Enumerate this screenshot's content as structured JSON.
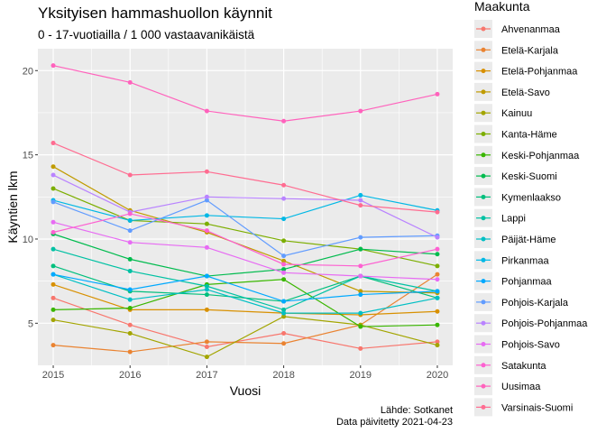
{
  "chart_data": {
    "type": "line",
    "title": "Yksityisen hammashuollon käynnit",
    "subtitle": "0 - 17-vuotiailla / 1 000 vastaavanikäistä",
    "xlabel": "Vuosi",
    "ylabel": "Käyntien lkm",
    "x": [
      2015,
      2016,
      2017,
      2018,
      2019,
      2020
    ],
    "xlim": [
      2014.8,
      2020.2
    ],
    "ylim": [
      2.5,
      21.3
    ],
    "y_ticks": [
      5,
      10,
      15,
      20
    ],
    "grid": true,
    "legend_title": "Maakunta",
    "legend_position": "right",
    "caption": [
      "Lähde: Sotkanet",
      "Data päivitetty 2021-04-23"
    ],
    "series": [
      {
        "name": "Ahvenanmaa",
        "color": "#F8766D",
        "values": [
          6.5,
          4.9,
          3.6,
          4.4,
          3.5,
          3.9
        ]
      },
      {
        "name": "Etelä-Karjala",
        "color": "#EA8331",
        "values": [
          3.7,
          3.3,
          3.9,
          3.8,
          4.9,
          7.9
        ]
      },
      {
        "name": "Etelä-Pohjanmaa",
        "color": "#D89000",
        "values": [
          7.3,
          5.8,
          5.8,
          5.6,
          5.5,
          5.7
        ]
      },
      {
        "name": "Etelä-Savo",
        "color": "#C09B00",
        "values": [
          14.3,
          11.7,
          10.4,
          8.7,
          6.9,
          6.8
        ]
      },
      {
        "name": "Kainuu",
        "color": "#A3A500",
        "values": [
          5.2,
          4.4,
          3.0,
          5.4,
          4.9,
          3.7
        ]
      },
      {
        "name": "Kanta-Häme",
        "color": "#7CAE00",
        "values": [
          13.0,
          11.1,
          10.9,
          9.9,
          9.4,
          8.4
        ]
      },
      {
        "name": "Keski-Pohjanmaa",
        "color": "#39B600",
        "values": [
          5.8,
          5.9,
          7.3,
          7.6,
          4.8,
          4.9
        ]
      },
      {
        "name": "Keski-Suomi",
        "color": "#00BB4E",
        "values": [
          10.3,
          8.8,
          7.8,
          8.2,
          9.4,
          9.1
        ]
      },
      {
        "name": "Kymenlaakso",
        "color": "#00BF7D",
        "values": [
          8.4,
          6.9,
          6.7,
          6.3,
          7.8,
          6.5
        ]
      },
      {
        "name": "Lappi",
        "color": "#00C1A3",
        "values": [
          9.4,
          8.1,
          7.2,
          5.8,
          7.8,
          6.9
        ]
      },
      {
        "name": "Päijät-Häme",
        "color": "#00BFC4",
        "values": [
          7.9,
          6.4,
          7.0,
          5.6,
          5.6,
          6.5
        ]
      },
      {
        "name": "Pirkanmaa",
        "color": "#00B8E5",
        "values": [
          12.3,
          11.1,
          11.4,
          11.2,
          12.6,
          11.7
        ]
      },
      {
        "name": "Pohjanmaa",
        "color": "#00A9FF",
        "values": [
          7.9,
          7.0,
          7.8,
          6.3,
          6.7,
          6.9
        ]
      },
      {
        "name": "Pohjois-Karjala",
        "color": "#619CFF",
        "values": [
          12.2,
          10.5,
          12.3,
          9.0,
          10.1,
          10.2
        ]
      },
      {
        "name": "Pohjois-Pohjanmaa",
        "color": "#B983FF",
        "values": [
          13.8,
          11.6,
          12.5,
          12.4,
          12.3,
          10.1
        ]
      },
      {
        "name": "Pohjois-Savo",
        "color": "#E76BF3",
        "values": [
          11.0,
          9.8,
          9.5,
          8.0,
          7.8,
          7.6
        ]
      },
      {
        "name": "Satakunta",
        "color": "#FD61D1",
        "values": [
          10.4,
          11.5,
          10.5,
          8.5,
          8.4,
          9.4
        ]
      },
      {
        "name": "Uusimaa",
        "color": "#FF62BC",
        "values": [
          20.3,
          19.3,
          17.6,
          17.0,
          17.6,
          18.6
        ]
      },
      {
        "name": "Varsinais-Suomi",
        "color": "#FF6C91",
        "values": [
          15.7,
          13.8,
          14.0,
          13.2,
          12.0,
          11.6
        ]
      }
    ]
  }
}
